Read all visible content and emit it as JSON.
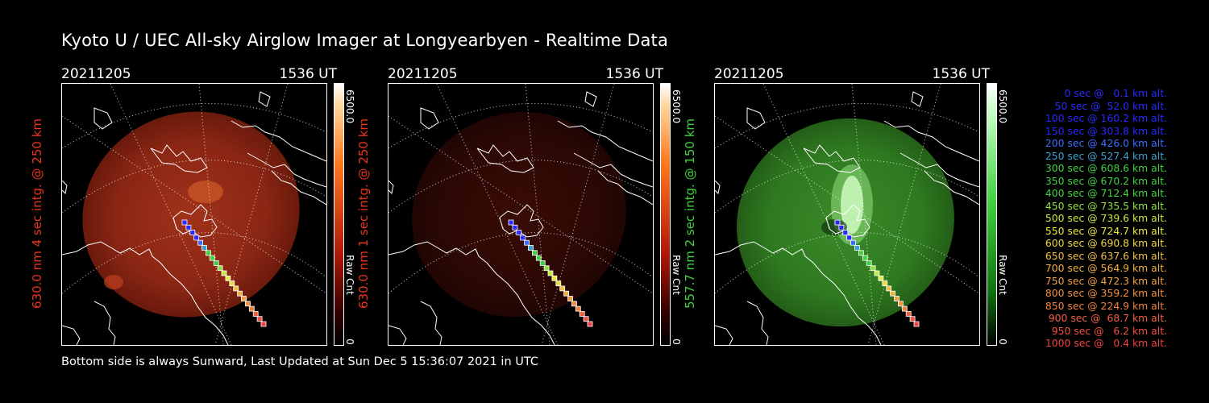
{
  "title": "Kyoto U / UEC All-sky Airglow Imager at Longyearbyen - Realtime Data",
  "footer": "Bottom side is always Sunward, Last Updated at Sun Dec  5 15:36:07 2021 in UTC",
  "panels": [
    {
      "date": "20211205",
      "time": "1536 UT",
      "ylabel": "630.0 nm 4 sec intg. @ 250 km",
      "ylabel_color": "#e8341c",
      "cbar_max": "6500.0",
      "cbar_min": "0",
      "cbar_unit": "Raw Cnt",
      "colormap": "red"
    },
    {
      "date": "20211205",
      "time": "1536 UT",
      "ylabel": "630.0 nm 1 sec intg. @ 250 km",
      "ylabel_color": "#e8341c",
      "cbar_max": "6500.0",
      "cbar_min": "0",
      "cbar_unit": "Raw Cnt",
      "colormap": "red"
    },
    {
      "date": "20211205",
      "time": "1536 UT",
      "ylabel": "557.7 nm 2 sec intg. @ 150 km",
      "ylabel_color": "#3fd13f",
      "cbar_max": "6500.0",
      "cbar_min": "0",
      "cbar_unit": "Raw Cnt",
      "colormap": "green"
    }
  ],
  "legend": [
    {
      "text": "0 sec @   0.1 km alt.",
      "color": "#2a2aff"
    },
    {
      "text": "50 sec @  52.0 km alt.",
      "color": "#2a2aff"
    },
    {
      "text": "100 sec @ 160.2 km alt.",
      "color": "#2a2aff"
    },
    {
      "text": "150 sec @ 303.8 km alt.",
      "color": "#2a2aff"
    },
    {
      "text": "200 sec @ 426.0 km alt.",
      "color": "#3a6cff"
    },
    {
      "text": "250 sec @ 527.4 km alt.",
      "color": "#3aa0d0"
    },
    {
      "text": "300 sec @ 608.6 km alt.",
      "color": "#40d040"
    },
    {
      "text": "350 sec @ 670.2 km alt.",
      "color": "#40d040"
    },
    {
      "text": "400 sec @ 712.4 km alt.",
      "color": "#40d040"
    },
    {
      "text": "450 sec @ 735.5 km alt.",
      "color": "#90e040"
    },
    {
      "text": "500 sec @ 739.6 km alt.",
      "color": "#c8e840"
    },
    {
      "text": "550 sec @ 724.7 km alt.",
      "color": "#e8e840"
    },
    {
      "text": "600 sec @ 690.8 km alt.",
      "color": "#f0d840"
    },
    {
      "text": "650 sec @ 637.6 km alt.",
      "color": "#f0c040"
    },
    {
      "text": "700 sec @ 564.9 km alt.",
      "color": "#f0b040"
    },
    {
      "text": "750 sec @ 472.3 km alt.",
      "color": "#f0a040"
    },
    {
      "text": "800 sec @ 359.2 km alt.",
      "color": "#f09040"
    },
    {
      "text": "850 sec @ 224.9 km alt.",
      "color": "#f08040"
    },
    {
      "text": "900 sec @  68.7 km alt.",
      "color": "#f06040"
    },
    {
      "text": "950 sec @   6.2 km alt.",
      "color": "#f05040"
    },
    {
      "text": "1000 sec @   0.4 km alt.",
      "color": "#f04040"
    }
  ]
}
